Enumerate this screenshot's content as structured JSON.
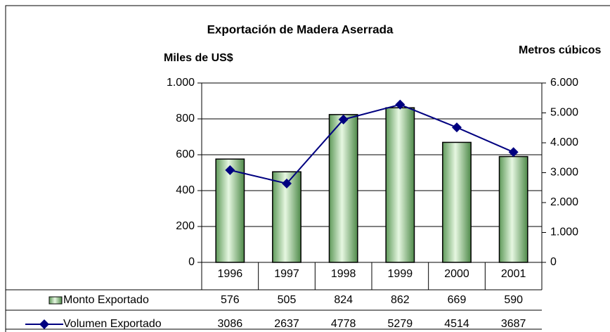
{
  "chart_data": {
    "type": "bar",
    "title": "Exportación de Madera Aserrada",
    "y_label": "Miles de US$",
    "y2_label": "Metros cúbicos",
    "categories": [
      "1996",
      "1997",
      "1998",
      "1999",
      "2000",
      "2001"
    ],
    "series": [
      {
        "name": "Monto Exportado",
        "type": "bar",
        "color": "#a8dca0",
        "values": [
          576,
          505,
          824,
          862,
          669,
          590
        ]
      },
      {
        "name": "Volumen Exportado",
        "type": "line",
        "axis": "y2",
        "color": "#000080",
        "values": [
          3086,
          2637,
          4778,
          5279,
          4514,
          3687
        ]
      }
    ],
    "ylim": [
      0,
      1000
    ],
    "yticks": [
      0,
      200,
      400,
      600,
      800,
      {
        "value": 1000,
        "label": "1.000"
      }
    ],
    "y2lim": [
      0,
      6000
    ],
    "y2ticks": [
      0,
      {
        "value": 1000,
        "label": "1.000"
      },
      {
        "value": 2000,
        "label": "2.000"
      },
      {
        "value": 3000,
        "label": "3.000"
      },
      {
        "value": 4000,
        "label": "4.000"
      },
      {
        "value": 5000,
        "label": "5.000"
      },
      {
        "value": 6000,
        "label": "6.000"
      }
    ],
    "grid": true,
    "data_table": true
  }
}
